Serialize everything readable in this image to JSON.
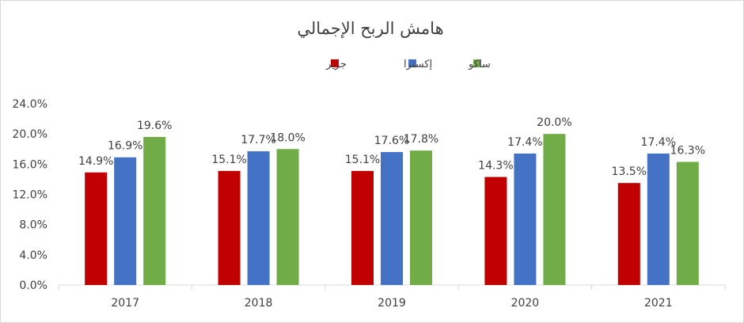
{
  "chart_data": {
    "type": "bar",
    "title": "هامش الربح الإجمالي",
    "categories": [
      "2017",
      "2018",
      "2019",
      "2020",
      "2021"
    ],
    "series": [
      {
        "name": "جرير",
        "color": "#c00000",
        "values": [
          14.9,
          15.1,
          15.1,
          14.3,
          13.5
        ],
        "labels": [
          "14.9%",
          "15.1%",
          "15.1%",
          "14.3%",
          "13.5%"
        ]
      },
      {
        "name": "إكسترا",
        "color": "#4472c4",
        "values": [
          16.9,
          17.7,
          17.6,
          17.4,
          17.4
        ],
        "labels": [
          "16.9%",
          "17.7%",
          "17.6%",
          "17.4%",
          "17.4%"
        ]
      },
      {
        "name": "ساكو",
        "color": "#70ad47",
        "values": [
          19.6,
          18.0,
          17.8,
          20.0,
          16.3
        ],
        "labels": [
          "19.6%",
          "18.0%",
          "17.8%",
          "20.0%",
          "16.3%"
        ]
      }
    ],
    "ylim": [
      0,
      24
    ],
    "yticks": [
      "0.0%",
      "4.0%",
      "8.0%",
      "12.0%",
      "16.0%",
      "20.0%",
      "24.0%"
    ],
    "ytick_values": [
      0,
      4,
      8,
      12,
      16,
      20,
      24
    ],
    "legend_position": "top-center",
    "grid": false
  }
}
